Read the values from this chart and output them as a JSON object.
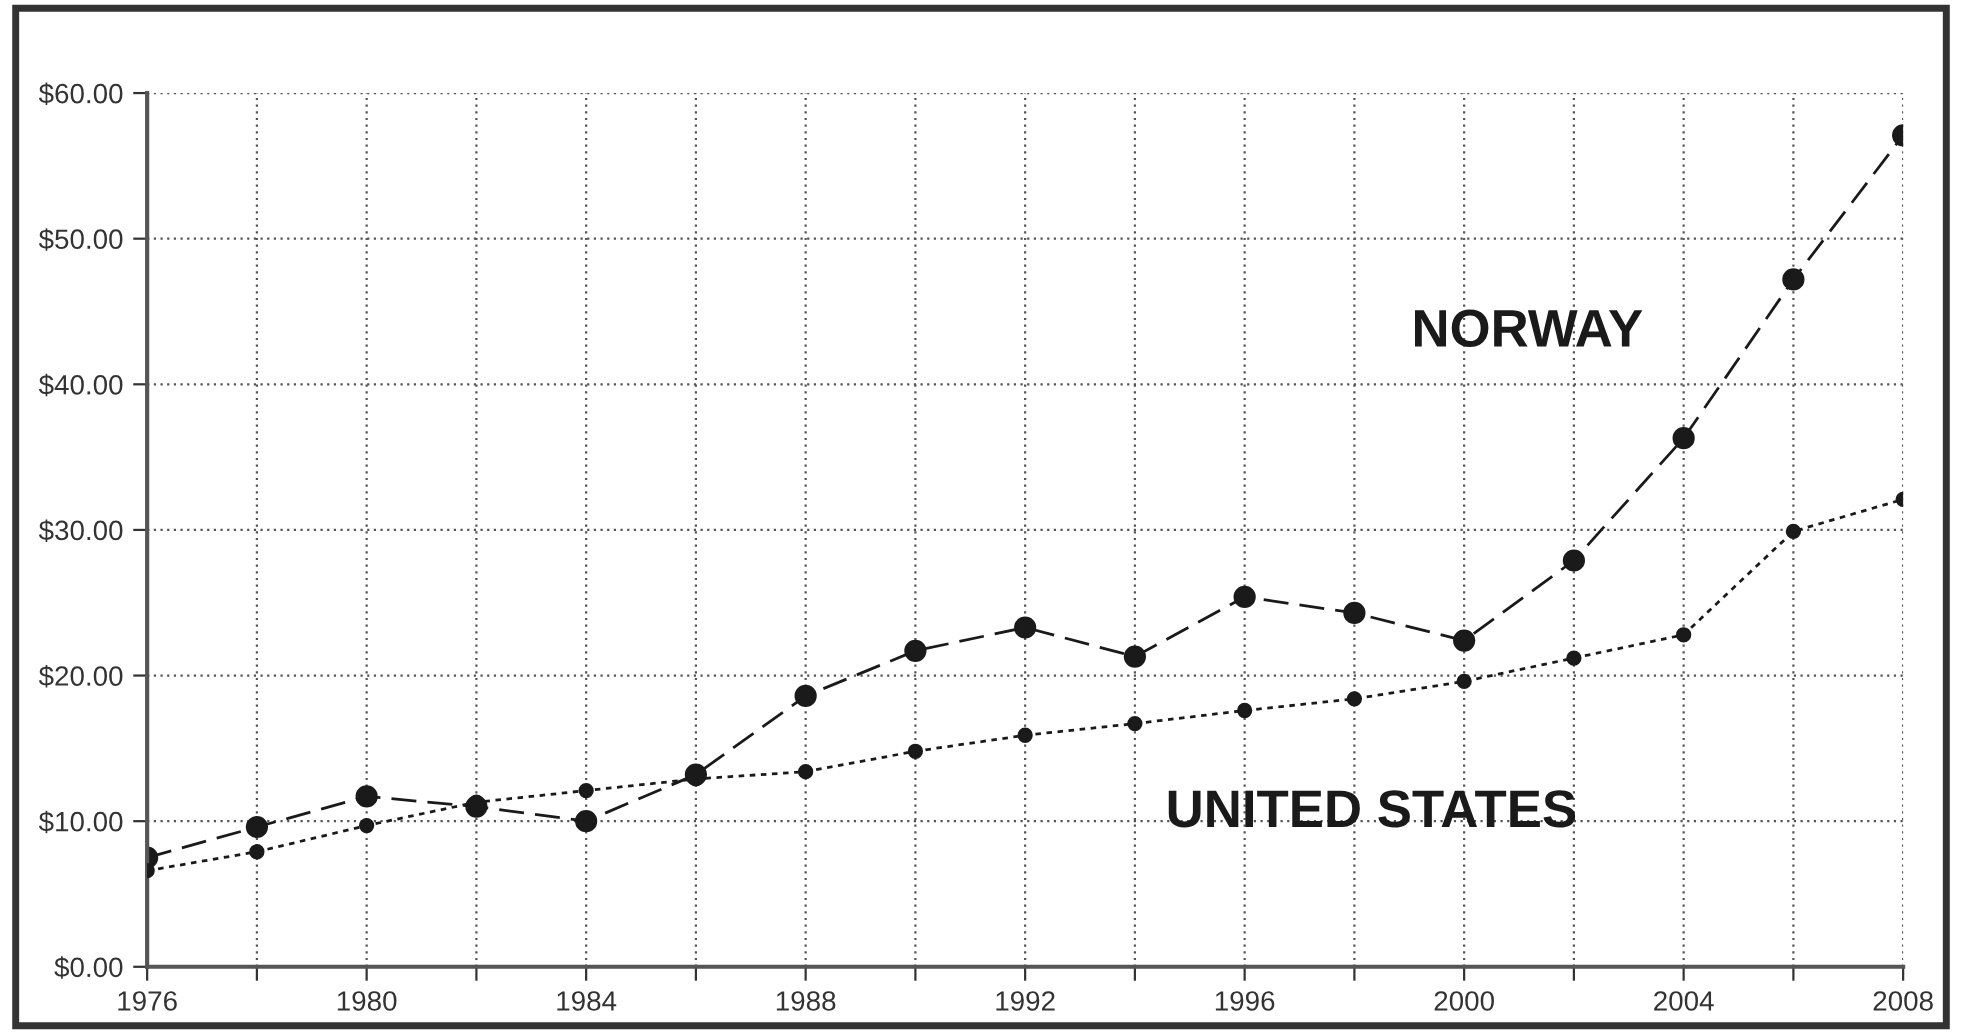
{
  "chart_data": {
    "type": "line",
    "x": [
      1976,
      1978,
      1980,
      1982,
      1984,
      1986,
      1988,
      1990,
      1992,
      1994,
      1996,
      1998,
      2000,
      2002,
      2004,
      2006,
      2008
    ],
    "series": [
      {
        "name": "NORWAY",
        "color": "#1a1a1a",
        "line_style": "dashed",
        "values": [
          7.5,
          9.6,
          11.7,
          11.0,
          10.0,
          13.2,
          18.6,
          21.7,
          23.3,
          21.3,
          25.4,
          24.3,
          22.4,
          27.9,
          36.3,
          47.2,
          57.1
        ]
      },
      {
        "name": "UNITED STATES",
        "color": "#1a1a1a",
        "line_style": "dotted",
        "values": [
          6.6,
          7.9,
          9.7,
          11.3,
          12.1,
          12.9,
          13.4,
          14.8,
          15.9,
          16.7,
          17.6,
          18.4,
          19.6,
          21.2,
          22.8,
          29.9,
          32.1
        ]
      }
    ],
    "marker": "circle",
    "grid": true,
    "legend": false,
    "xlim": [
      1976,
      2008
    ],
    "xticks": [
      1976,
      {
        "value": 1978,
        "label": null
      },
      1980,
      {
        "value": 1982,
        "label": null
      },
      1984,
      {
        "value": 1986,
        "label": null
      },
      1988,
      {
        "value": 1990,
        "label": null
      },
      1992,
      {
        "value": 1994,
        "label": null
      },
      1996,
      {
        "value": 1998,
        "label": null
      },
      2000,
      {
        "value": 2002,
        "label": null
      },
      2004,
      {
        "value": 2006,
        "label": null
      },
      2008
    ],
    "ylim": [
      0,
      60
    ],
    "yticks": [
      {
        "value": 0,
        "label": "$0.00"
      },
      {
        "value": 10,
        "label": "$10.00"
      },
      {
        "value": 20,
        "label": "$20.00"
      },
      {
        "value": 30,
        "label": "$30.00"
      },
      {
        "value": 40,
        "label": "$40.00"
      },
      {
        "value": 50,
        "label": "$50.00"
      },
      {
        "value": 60,
        "label": "$60.00"
      }
    ]
  }
}
